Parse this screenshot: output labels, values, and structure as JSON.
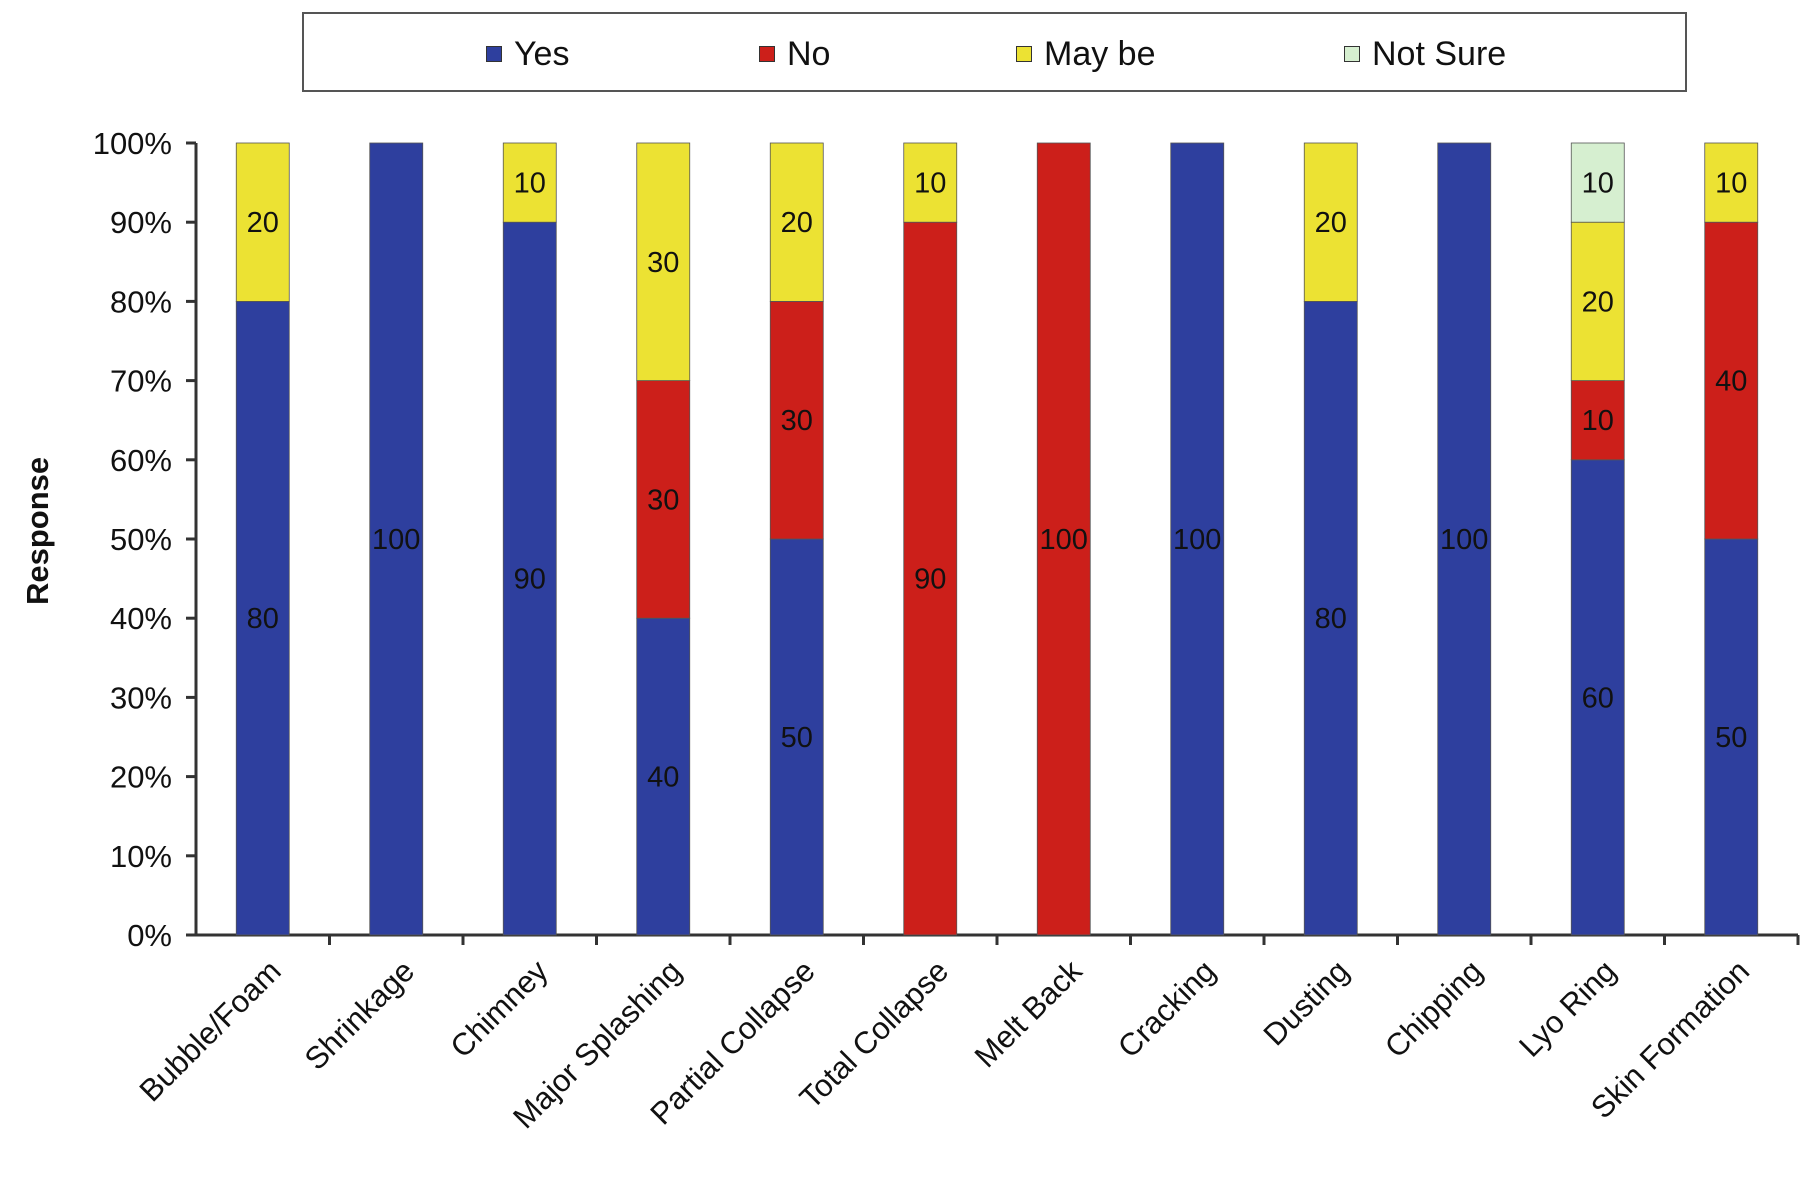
{
  "chart_data": {
    "type": "bar",
    "stacked": true,
    "normalized_percent": true,
    "title": "",
    "xlabel": "",
    "ylabel": "Response",
    "ylim": [
      0,
      100
    ],
    "yticks": [
      "0%",
      "10%",
      "20%",
      "30%",
      "40%",
      "50%",
      "60%",
      "70%",
      "80%",
      "90%",
      "100%"
    ],
    "grid": false,
    "legend_position": "top",
    "categories": [
      "Bubble/Foam",
      "Shrinkage",
      "Chimney",
      "Major Splashing",
      "Partial Collapse",
      "Total Collapse",
      "Melt Back",
      "Cracking",
      "Dusting",
      "Chipping",
      "Lyo Ring",
      "Skin Formation"
    ],
    "series": [
      {
        "name": "Yes",
        "color": "#2e3f9e",
        "values": [
          80,
          100,
          90,
          40,
          50,
          0,
          0,
          100,
          80,
          100,
          60,
          50
        ]
      },
      {
        "name": "No",
        "color": "#cc1f1a",
        "values": [
          0,
          0,
          0,
          30,
          30,
          90,
          100,
          0,
          0,
          0,
          10,
          40
        ]
      },
      {
        "name": "May be",
        "color": "#ece233",
        "values": [
          20,
          0,
          10,
          30,
          20,
          10,
          0,
          0,
          20,
          0,
          20,
          10
        ]
      },
      {
        "name": "Not Sure",
        "color": "#d6efd0",
        "values": [
          0,
          0,
          0,
          0,
          0,
          0,
          0,
          0,
          0,
          0,
          10,
          0
        ]
      }
    ]
  }
}
